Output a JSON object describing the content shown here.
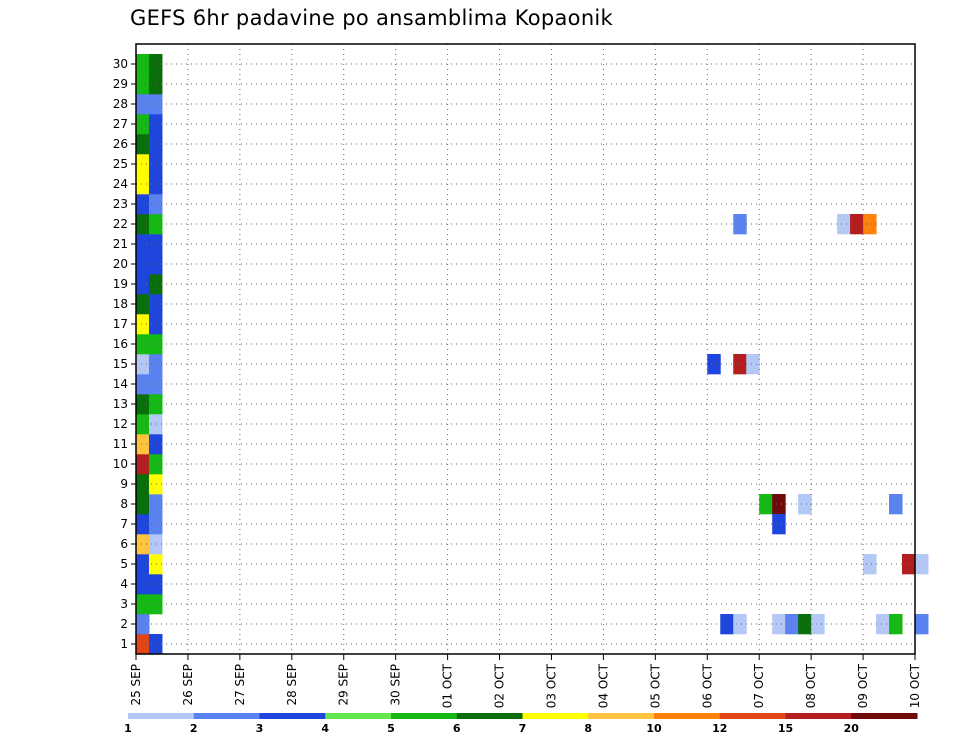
{
  "title": "GEFS 6hr padavine po ansamblima Kopaonik",
  "chart_data": {
    "type": "heatmap",
    "title": "GEFS 6hr padavine po ansamblima Kopaonik",
    "y_categories": [
      "1",
      "2",
      "3",
      "4",
      "5",
      "6",
      "7",
      "8",
      "9",
      "10",
      "11",
      "12",
      "13",
      "14",
      "15",
      "16",
      "17",
      "18",
      "19",
      "20",
      "21",
      "22",
      "23",
      "24",
      "25",
      "26",
      "27",
      "28",
      "29",
      "30"
    ],
    "x_tick_labels": [
      "25 SEP",
      "26 SEP",
      "27 SEP",
      "28 SEP",
      "29 SEP",
      "30 SEP",
      "01 OCT",
      "02 OCT",
      "03 OCT",
      "04 OCT",
      "05 OCT",
      "06 OCT",
      "07 OCT",
      "08 OCT",
      "09 OCT",
      "10 OCT"
    ],
    "x_range_days": [
      0,
      15
    ],
    "time_step_hours": 6,
    "grid": "dotted",
    "legend": {
      "placement": "bottom",
      "labels": [
        "1",
        "2",
        "3",
        "4",
        "5",
        "6",
        "7",
        "8",
        "10",
        "12",
        "15",
        "20"
      ],
      "colors": [
        "#b4c8f5",
        "#5a82f0",
        "#1e46dc",
        "#64e650",
        "#14b914",
        "#0a6e0a",
        "#ffff00",
        "#ffc340",
        "#ff820a",
        "#e14614",
        "#b41e1e",
        "#6e0a0a"
      ]
    },
    "cells": [
      {
        "member": 1,
        "step": 0,
        "cls": 10
      },
      {
        "member": 1,
        "step": 1,
        "cls": 3
      },
      {
        "member": 2,
        "step": 0,
        "cls": 2
      },
      {
        "member": 3,
        "step": 0,
        "cls": 5
      },
      {
        "member": 3,
        "step": 1,
        "cls": 5
      },
      {
        "member": 4,
        "step": 0,
        "cls": 3
      },
      {
        "member": 4,
        "step": 1,
        "cls": 3
      },
      {
        "member": 5,
        "step": 0,
        "cls": 3
      },
      {
        "member": 5,
        "step": 1,
        "cls": 7
      },
      {
        "member": 6,
        "step": 0,
        "cls": 8
      },
      {
        "member": 6,
        "step": 1,
        "cls": 1
      },
      {
        "member": 7,
        "step": 0,
        "cls": 3
      },
      {
        "member": 7,
        "step": 1,
        "cls": 2
      },
      {
        "member": 8,
        "step": 0,
        "cls": 6
      },
      {
        "member": 8,
        "step": 1,
        "cls": 2
      },
      {
        "member": 9,
        "step": 0,
        "cls": 6
      },
      {
        "member": 9,
        "step": 1,
        "cls": 7
      },
      {
        "member": 10,
        "step": 0,
        "cls": 11
      },
      {
        "member": 10,
        "step": 1,
        "cls": 5
      },
      {
        "member": 11,
        "step": 0,
        "cls": 8
      },
      {
        "member": 11,
        "step": 1,
        "cls": 3
      },
      {
        "member": 12,
        "step": 0,
        "cls": 5
      },
      {
        "member": 12,
        "step": 1,
        "cls": 1
      },
      {
        "member": 13,
        "step": 0,
        "cls": 6
      },
      {
        "member": 13,
        "step": 1,
        "cls": 5
      },
      {
        "member": 14,
        "step": 0,
        "cls": 2
      },
      {
        "member": 14,
        "step": 1,
        "cls": 2
      },
      {
        "member": 15,
        "step": 0,
        "cls": 1
      },
      {
        "member": 15,
        "step": 1,
        "cls": 2
      },
      {
        "member": 16,
        "step": 0,
        "cls": 5
      },
      {
        "member": 16,
        "step": 1,
        "cls": 5
      },
      {
        "member": 17,
        "step": 0,
        "cls": 7
      },
      {
        "member": 17,
        "step": 1,
        "cls": 3
      },
      {
        "member": 18,
        "step": 0,
        "cls": 6
      },
      {
        "member": 18,
        "step": 1,
        "cls": 3
      },
      {
        "member": 19,
        "step": 0,
        "cls": 3
      },
      {
        "member": 19,
        "step": 1,
        "cls": 6
      },
      {
        "member": 20,
        "step": 0,
        "cls": 3
      },
      {
        "member": 20,
        "step": 1,
        "cls": 3
      },
      {
        "member": 21,
        "step": 0,
        "cls": 3
      },
      {
        "member": 21,
        "step": 1,
        "cls": 3
      },
      {
        "member": 22,
        "step": 0,
        "cls": 6
      },
      {
        "member": 22,
        "step": 1,
        "cls": 5
      },
      {
        "member": 23,
        "step": 0,
        "cls": 3
      },
      {
        "member": 23,
        "step": 1,
        "cls": 2
      },
      {
        "member": 24,
        "step": 0,
        "cls": 7
      },
      {
        "member": 24,
        "step": 1,
        "cls": 3
      },
      {
        "member": 25,
        "step": 0,
        "cls": 7
      },
      {
        "member": 25,
        "step": 1,
        "cls": 3
      },
      {
        "member": 26,
        "step": 0,
        "cls": 6
      },
      {
        "member": 26,
        "step": 1,
        "cls": 3
      },
      {
        "member": 27,
        "step": 0,
        "cls": 5
      },
      {
        "member": 27,
        "step": 1,
        "cls": 3
      },
      {
        "member": 28,
        "step": 0,
        "cls": 2
      },
      {
        "member": 28,
        "step": 1,
        "cls": 2
      },
      {
        "member": 29,
        "step": 0,
        "cls": 5
      },
      {
        "member": 29,
        "step": 1,
        "cls": 6
      },
      {
        "member": 30,
        "step": 0,
        "cls": 5
      },
      {
        "member": 30,
        "step": 1,
        "cls": 6
      },
      {
        "member": 22,
        "step": 46,
        "cls": 2
      },
      {
        "member": 22,
        "step": 54,
        "cls": 1
      },
      {
        "member": 22,
        "step": 55,
        "cls": 11
      },
      {
        "member": 22,
        "step": 56,
        "cls": 9
      },
      {
        "member": 15,
        "step": 44,
        "cls": 3
      },
      {
        "member": 15,
        "step": 46,
        "cls": 11
      },
      {
        "member": 15,
        "step": 47,
        "cls": 1
      },
      {
        "member": 8,
        "step": 48,
        "cls": 5
      },
      {
        "member": 8,
        "step": 49,
        "cls": 12
      },
      {
        "member": 8,
        "step": 51,
        "cls": 1
      },
      {
        "member": 8,
        "step": 58,
        "cls": 2
      },
      {
        "member": 7,
        "step": 49,
        "cls": 3
      },
      {
        "member": 5,
        "step": 56,
        "cls": 1
      },
      {
        "member": 5,
        "step": 59,
        "cls": 11
      },
      {
        "member": 5,
        "step": 60,
        "cls": 1
      },
      {
        "member": 2,
        "step": 45,
        "cls": 3
      },
      {
        "member": 2,
        "step": 46,
        "cls": 1
      },
      {
        "member": 2,
        "step": 49,
        "cls": 1
      },
      {
        "member": 2,
        "step": 50,
        "cls": 2
      },
      {
        "member": 2,
        "step": 51,
        "cls": 6
      },
      {
        "member": 2,
        "step": 52,
        "cls": 1
      },
      {
        "member": 2,
        "step": 57,
        "cls": 1
      },
      {
        "member": 2,
        "step": 58,
        "cls": 5
      },
      {
        "member": 2,
        "step": 60,
        "cls": 2
      }
    ]
  }
}
